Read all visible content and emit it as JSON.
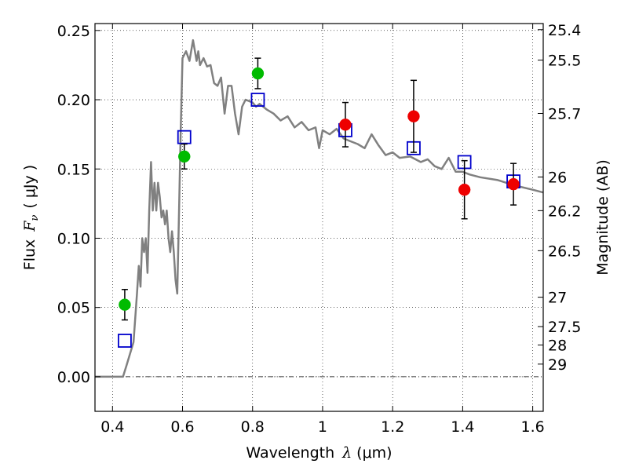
{
  "chart_data": {
    "type": "scatter",
    "xlabel_main": "Wavelength",
    "xlabel_symbol": "λ",
    "xlabel_unit": "(μm)",
    "ylabel_main": "Flux",
    "ylabel_symbol": "F",
    "ylabel_subscript": "ν",
    "ylabel_unit": "( μJy )",
    "y2label": "Magnitude (AB)",
    "xlim": [
      0.35,
      1.63
    ],
    "ylim": [
      -0.025,
      0.255
    ],
    "xticks": [
      0.4,
      0.6,
      0.8,
      1.0,
      1.2,
      1.4,
      1.6
    ],
    "xtick_labels": [
      "0.4",
      "0.6",
      "0.8",
      "1",
      "1.2",
      "1.4",
      "1.6"
    ],
    "yticks": [
      0.0,
      0.05,
      0.1,
      0.15,
      0.2,
      0.25
    ],
    "ytick_labels": [
      "0.00",
      "0.05",
      "0.10",
      "0.15",
      "0.20",
      "0.25"
    ],
    "mag_ticks": [
      {
        "label": "25.4",
        "flux": 0.2506
      },
      {
        "label": "25.5",
        "flux": 0.2286
      },
      {
        "label": "25.7",
        "flux": 0.1901
      },
      {
        "label": "26",
        "flux": 0.1442
      },
      {
        "label": "26.2",
        "flux": 0.1199
      },
      {
        "label": "26.5",
        "flux": 0.091
      },
      {
        "label": "27",
        "flux": 0.0574
      },
      {
        "label": "27.5",
        "flux": 0.0362
      },
      {
        "label": "28",
        "flux": 0.0229
      },
      {
        "label": "29",
        "flux": 0.0091
      }
    ],
    "grid": true,
    "series": [
      {
        "name": "template SED",
        "kind": "line",
        "color": "#808080",
        "x": [
          0.35,
          0.4,
          0.43,
          0.44,
          0.46,
          0.47,
          0.475,
          0.48,
          0.485,
          0.49,
          0.495,
          0.5,
          0.505,
          0.51,
          0.515,
          0.52,
          0.525,
          0.53,
          0.535,
          0.54,
          0.545,
          0.55,
          0.555,
          0.56,
          0.565,
          0.57,
          0.575,
          0.58,
          0.585,
          0.59,
          0.595,
          0.6,
          0.61,
          0.62,
          0.63,
          0.64,
          0.645,
          0.65,
          0.66,
          0.67,
          0.68,
          0.69,
          0.7,
          0.71,
          0.72,
          0.73,
          0.74,
          0.75,
          0.76,
          0.77,
          0.78,
          0.8,
          0.81,
          0.82,
          0.84,
          0.86,
          0.88,
          0.9,
          0.92,
          0.94,
          0.96,
          0.98,
          0.99,
          1.0,
          1.02,
          1.04,
          1.06,
          1.08,
          1.1,
          1.12,
          1.14,
          1.16,
          1.18,
          1.2,
          1.22,
          1.25,
          1.28,
          1.3,
          1.32,
          1.34,
          1.36,
          1.38,
          1.4,
          1.42,
          1.45,
          1.5,
          1.55,
          1.6,
          1.63
        ],
        "y": [
          0.0,
          0.0,
          0.0,
          0.008,
          0.025,
          0.06,
          0.08,
          0.065,
          0.1,
          0.09,
          0.1,
          0.075,
          0.12,
          0.155,
          0.12,
          0.14,
          0.12,
          0.14,
          0.13,
          0.115,
          0.12,
          0.11,
          0.12,
          0.1,
          0.09,
          0.105,
          0.09,
          0.07,
          0.06,
          0.12,
          0.18,
          0.23,
          0.235,
          0.228,
          0.243,
          0.228,
          0.235,
          0.225,
          0.23,
          0.224,
          0.225,
          0.212,
          0.21,
          0.216,
          0.19,
          0.21,
          0.21,
          0.19,
          0.175,
          0.195,
          0.2,
          0.198,
          0.195,
          0.197,
          0.193,
          0.19,
          0.185,
          0.188,
          0.18,
          0.184,
          0.178,
          0.18,
          0.165,
          0.178,
          0.175,
          0.179,
          0.172,
          0.17,
          0.168,
          0.165,
          0.175,
          0.167,
          0.16,
          0.162,
          0.158,
          0.159,
          0.155,
          0.157,
          0.152,
          0.15,
          0.158,
          0.148,
          0.148,
          0.146,
          0.144,
          0.142,
          0.138,
          0.135,
          0.133
        ]
      },
      {
        "name": "model photometry",
        "kind": "open-square",
        "color": "#0000cc",
        "x": [
          0.435,
          0.605,
          0.815,
          1.065,
          1.26,
          1.405,
          1.545
        ],
        "y": [
          0.026,
          0.173,
          0.2,
          0.178,
          0.165,
          0.155,
          0.141
        ]
      },
      {
        "name": "green detections",
        "kind": "filled-circle",
        "color": "#00bb00",
        "x": [
          0.435,
          0.605,
          0.815
        ],
        "y": [
          0.052,
          0.159,
          0.219
        ],
        "yerr": [
          0.011,
          0.009,
          0.011
        ]
      },
      {
        "name": "red detections",
        "kind": "filled-circle",
        "color": "#ee0000",
        "x": [
          1.065,
          1.26,
          1.405,
          1.545
        ],
        "y": [
          0.182,
          0.188,
          0.135,
          0.139
        ],
        "yerr": [
          0.016,
          0.026,
          0.021,
          0.015
        ]
      }
    ]
  }
}
